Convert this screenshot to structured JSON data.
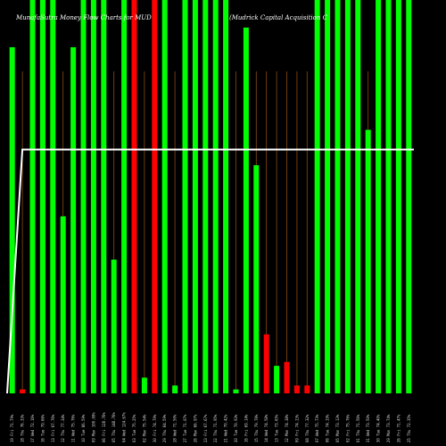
{
  "chart_data": {
    "type": "bar",
    "title_left": "MunafaSutra  Money Flow  Charts for MUD",
    "title_right": "(Mudrick Capital Acquisition C",
    "ylim": [
      0,
      100
    ],
    "categories": [
      "19 Fri 71.79%",
      "18 Thu 76.33%",
      "17 Wed 72.16%",
      "16 Tue 79.66%",
      "13 Fri 67.76%",
      "12 Thu 77.34%",
      "11 Wed 75.76%",
      "10 Tue 86.59%",
      "09 Mon 100.00%",
      "06 Fri 128.76%",
      "05 Thu 148.76%",
      "04 Wed 124.67%",
      "03 Tue 75.25%",
      "02 Mon 75.54%",
      "30 Fri 74.70%",
      "29 Thu 84.59%",
      "28 Wed 71.50%",
      "27 Tue 71.07%",
      "26 Mon 66.97%",
      "23 Fri 67.67%",
      "22 Thu 71.95%",
      "21 Wed 70.42%",
      "20 Tue 70.93%",
      "16 Fri 69.14%",
      "15 Thu 79.78%",
      "14 Wed 74.58%",
      "13 Tue 73.65%",
      "12 Mon 74.38%",
      "09 Fri 74.13%",
      "08 Thu 77.32%",
      "07 Wed 75.73%",
      "06 Tue 74.19%",
      "05 Mon 73.13%",
      "02 Fri 75.76%",
      "01 Thu 71.56%",
      "31 Wed 73.50%",
      "30 Tue 74.40%",
      "29 Mon 73.74%",
      "26 Fri 71.47%",
      "25 Thu 72.35%"
    ],
    "values": [
      88,
      1,
      100,
      100,
      100,
      45,
      88,
      100,
      100,
      100,
      34,
      100,
      100,
      4,
      100,
      100,
      2,
      100,
      100,
      100,
      100,
      100,
      1,
      93,
      58,
      15,
      7,
      8,
      2,
      2,
      100,
      100,
      100,
      100,
      100,
      67,
      100,
      100,
      100,
      100
    ],
    "colors": [
      "green",
      "red",
      "green",
      "green",
      "green",
      "green",
      "green",
      "green",
      "green",
      "green",
      "green",
      "green",
      "red",
      "green",
      "red",
      "green",
      "green",
      "green",
      "green",
      "green",
      "green",
      "green",
      "green",
      "green",
      "green",
      "red",
      "green",
      "red",
      "red",
      "red",
      "green",
      "green",
      "green",
      "green",
      "green",
      "green",
      "green",
      "green",
      "green",
      "green"
    ],
    "line": {
      "values": [
        0,
        62,
        62,
        62,
        62,
        62,
        62,
        62,
        62,
        62,
        62,
        62,
        62,
        62,
        62,
        62,
        62,
        62,
        62,
        62,
        62,
        62,
        62,
        62,
        62,
        62,
        62,
        62,
        62,
        62,
        62,
        62,
        62,
        62,
        62,
        62,
        62,
        62,
        62,
        62
      ]
    },
    "palette": {
      "green": "#00ff00",
      "red": "#ff0000",
      "line": "#ffffff",
      "grid": "#8b4a0e",
      "background": "#000000"
    }
  }
}
